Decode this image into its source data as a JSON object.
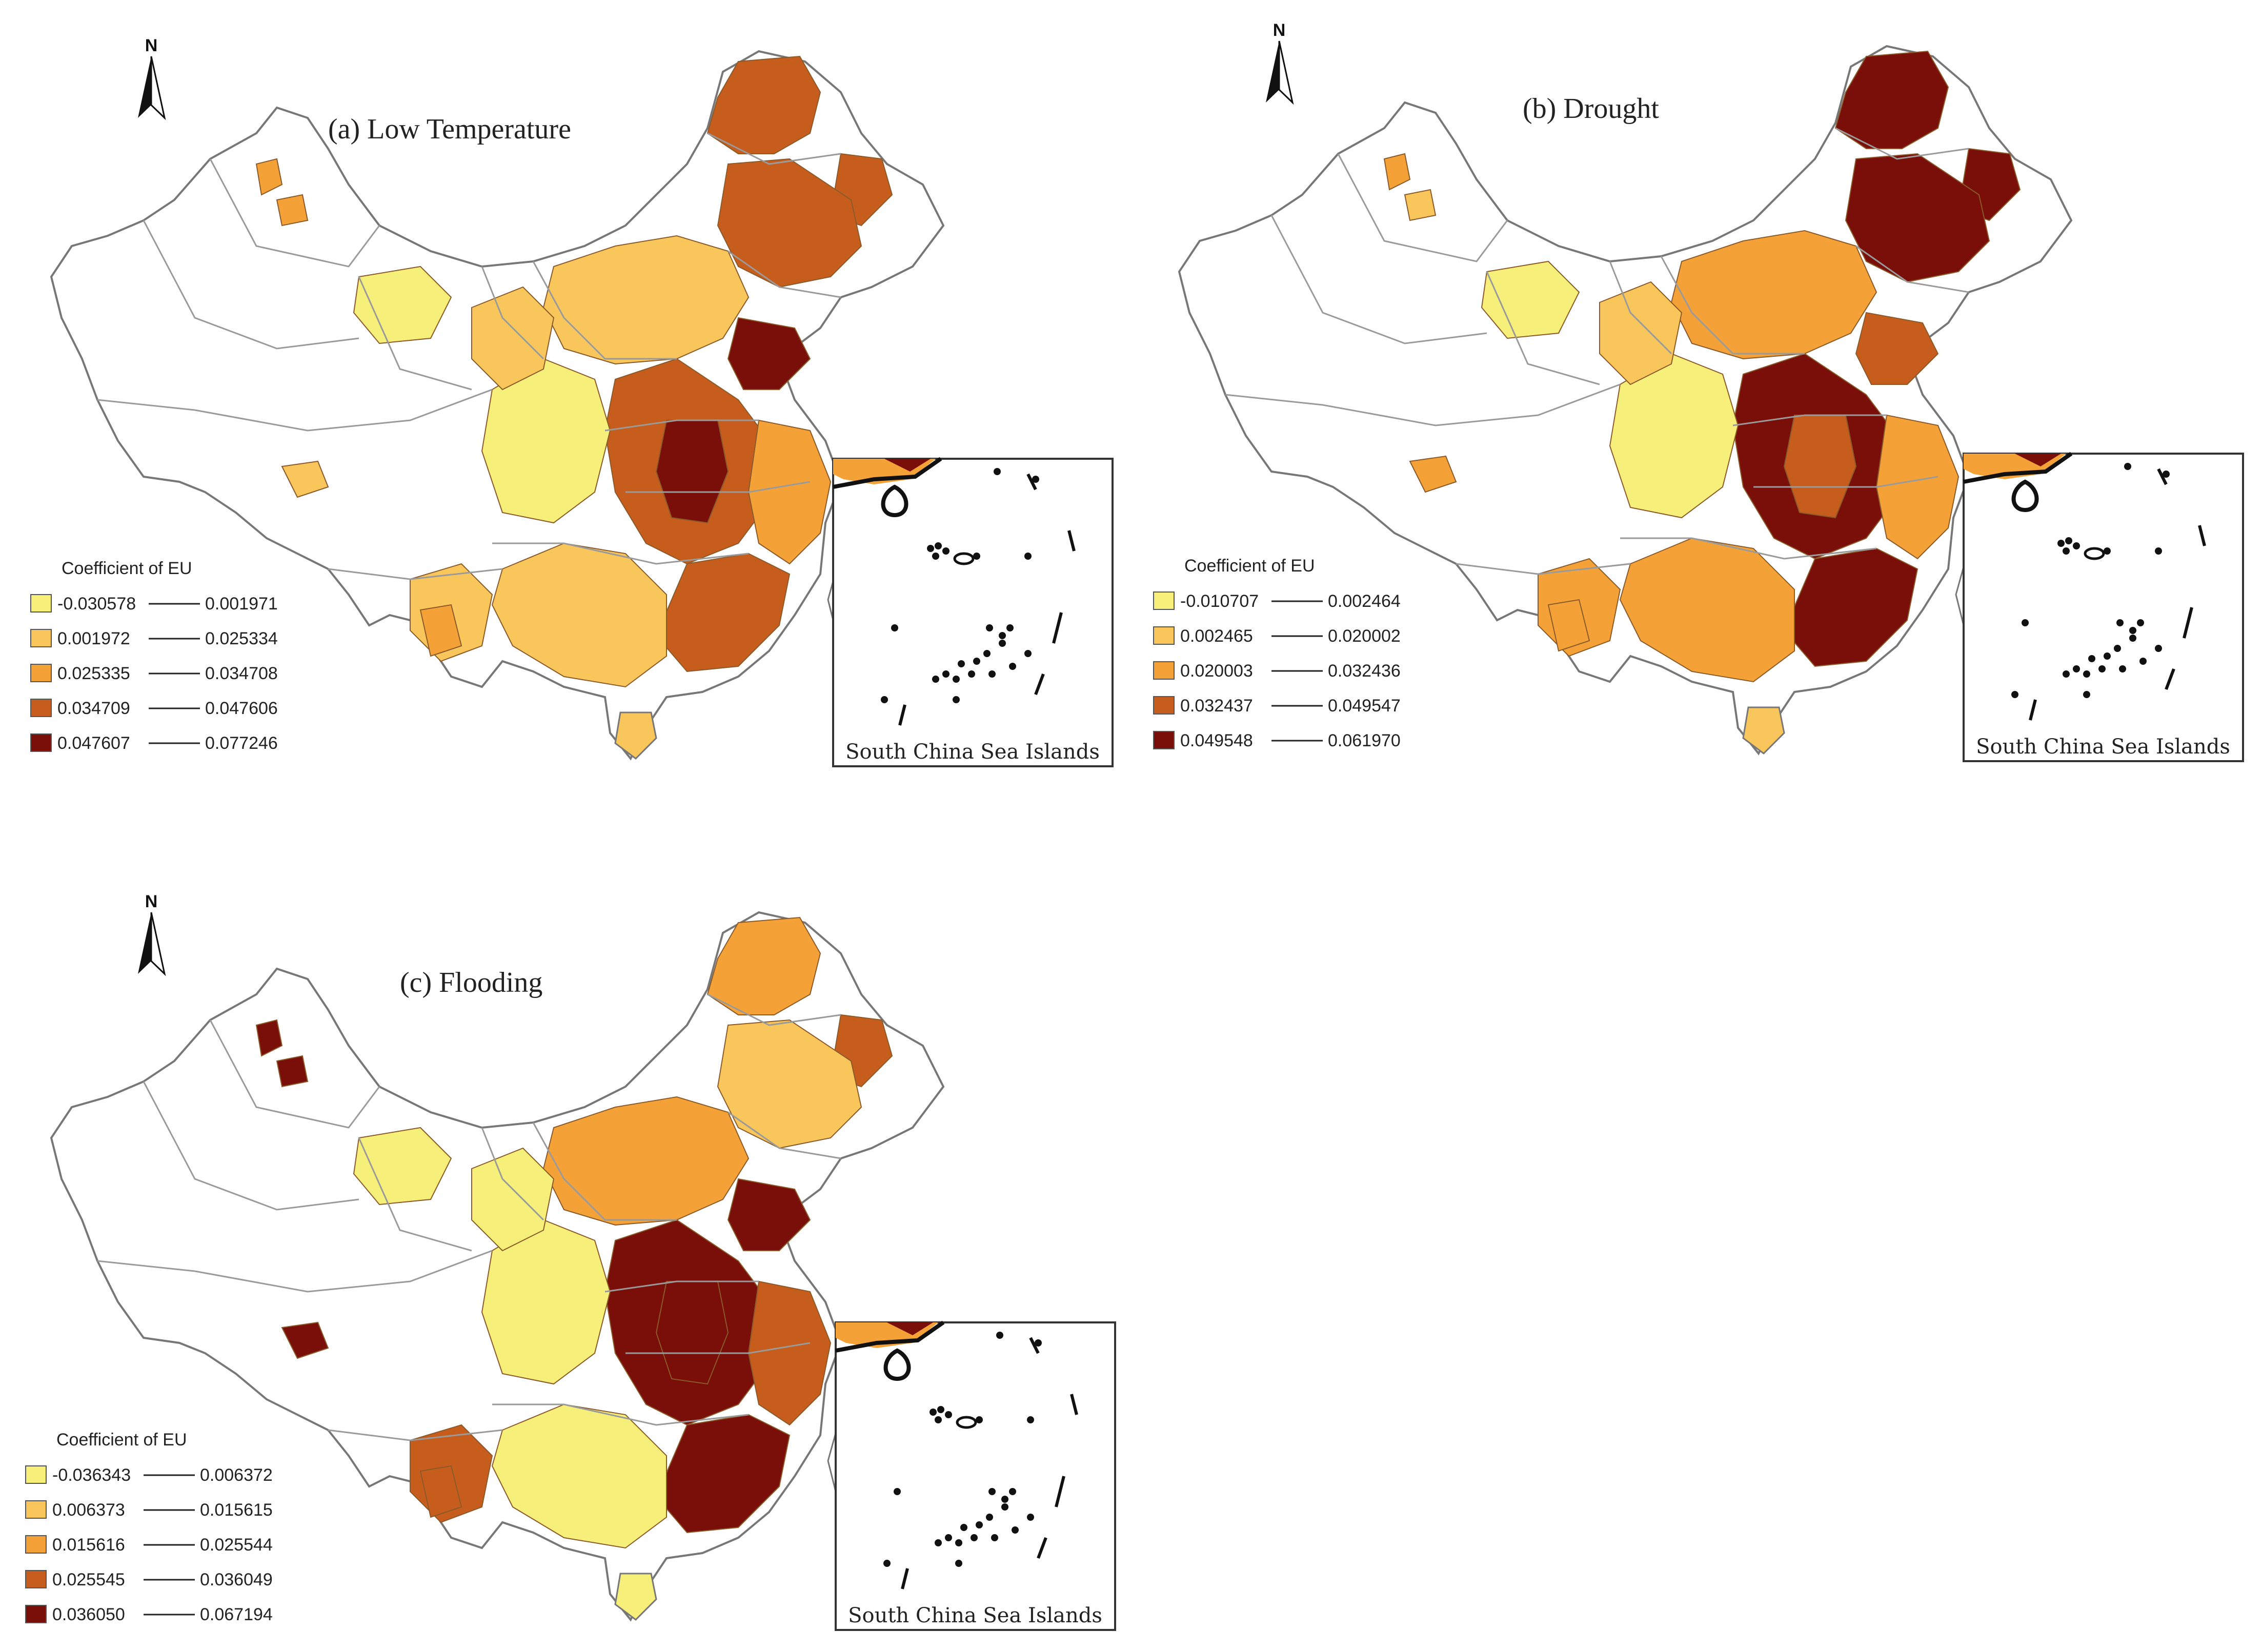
{
  "colors": {
    "class1": "#f6f07a",
    "class2": "#f9c65c",
    "class3": "#f4a237",
    "class4": "#c75d1c",
    "class5": "#7a0f0a",
    "outline": "#8a8a8a",
    "inset": "#111111"
  },
  "north_symbol": "N",
  "inset_label": "South China Sea Islands",
  "panels": [
    {
      "title": "(a) Low Temperature",
      "legend_title": "Coefficient of EU",
      "classes": [
        {
          "from": "-0.030578",
          "to": "0.001971"
        },
        {
          "from": "0.001972",
          "to": "0.025334"
        },
        {
          "from": "0.025335",
          "to": "0.034708"
        },
        {
          "from": "0.034709",
          "to": "0.047606"
        },
        {
          "from": "0.047607",
          "to": "0.077246"
        }
      ]
    },
    {
      "title": "(b) Drought",
      "legend_title": "Coefficient of EU",
      "classes": [
        {
          "from": "-0.010707",
          "to": "0.002464"
        },
        {
          "from": "0.002465",
          "to": "0.020002"
        },
        {
          "from": "0.020003",
          "to": "0.032436"
        },
        {
          "from": "0.032437",
          "to": "0.049547"
        },
        {
          "from": "0.049548",
          "to": "0.061970"
        }
      ]
    },
    {
      "title": "(c) Flooding",
      "legend_title": "Coefficient of EU",
      "classes": [
        {
          "from": "-0.036343",
          "to": "0.006372"
        },
        {
          "from": "0.006373",
          "to": "0.015615"
        },
        {
          "from": "0.015616",
          "to": "0.025544"
        },
        {
          "from": "0.025545",
          "to": "0.036049"
        },
        {
          "from": "0.036050",
          "to": "0.067194"
        }
      ]
    }
  ]
}
